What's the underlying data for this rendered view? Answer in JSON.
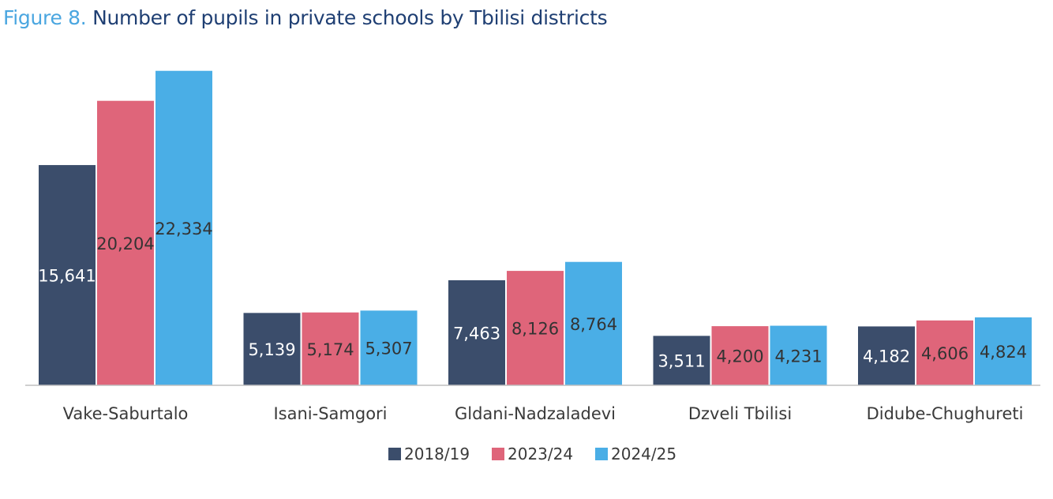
{
  "title": {
    "prefix": "Figure 8.",
    "text": "Number of pupils in private schools by Tbilisi districts"
  },
  "colors": {
    "title_prefix": "#4aa6e0",
    "title_text": "#1f3f73",
    "axis": "#bfbfbf"
  },
  "chart_data": {
    "type": "bar",
    "categories": [
      "Vake-Saburtalo",
      "Isani-Samgori",
      "Gldani-Nadzaladevi",
      "Dzveli Tbilisi",
      "Didube-Chughureti"
    ],
    "series": [
      {
        "name": "2018/19",
        "color": "#3b4d6b",
        "values": [
          15641,
          5139,
          7463,
          3511,
          4182
        ],
        "labels": [
          "15,641",
          "5,139",
          "7,463",
          "3,511",
          "4,182"
        ],
        "label_color": "#ffffff"
      },
      {
        "name": "2023/24",
        "color": "#df657a",
        "values": [
          20204,
          5174,
          8126,
          4200,
          4606
        ],
        "labels": [
          "20,204",
          "5,174",
          "8,126",
          "4,200",
          "4,606"
        ],
        "label_color": "#333333"
      },
      {
        "name": "2024/25",
        "color": "#4aaee6",
        "values": [
          22334,
          5307,
          8764,
          4231,
          4824
        ],
        "labels": [
          "22,334",
          "5,307",
          "8,764",
          "4,231",
          "4,824"
        ],
        "label_color": "#333333"
      }
    ],
    "ylim": [
      0,
      24000
    ],
    "grid": false,
    "legend": "bottom"
  }
}
